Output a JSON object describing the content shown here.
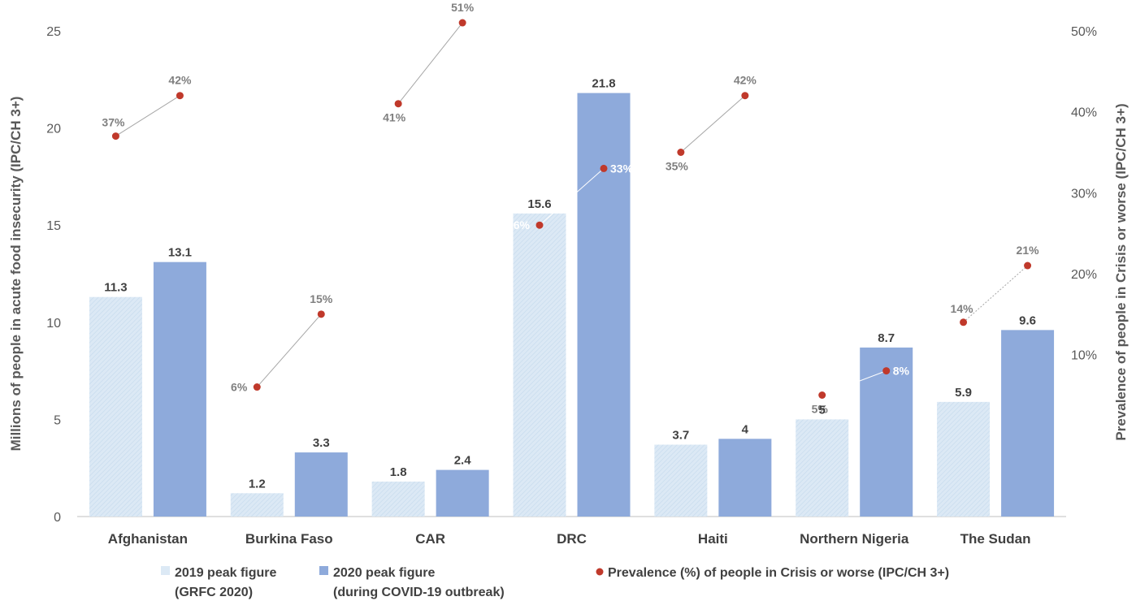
{
  "chart_data": {
    "type": "bar",
    "categories": [
      "Afghanistan",
      "Burkina Faso",
      "CAR",
      "DRC",
      "Haiti",
      "Northern Nigeria",
      "The Sudan"
    ],
    "series": [
      {
        "name": "2019 peak figure (GRFC 2020)",
        "legend_lines": [
          "2019 peak figure",
          "(GRFC 2020)"
        ],
        "color": "#dce9f5",
        "values": [
          11.3,
          1.2,
          1.8,
          15.6,
          3.7,
          5,
          5.9
        ],
        "value_labels": [
          "11.3",
          "1.2",
          "1.8",
          "15.6",
          "3.7",
          "5",
          "5.9"
        ]
      },
      {
        "name": "2020 peak figure (during COVID-19 outbreak)",
        "legend_lines": [
          "2020 peak figure",
          "(during COVID-19 outbreak)"
        ],
        "color": "#8eaadb",
        "values": [
          13.1,
          3.3,
          2.4,
          21.8,
          4,
          8.7,
          9.6
        ],
        "value_labels": [
          "13.1",
          "3.3",
          "2.4",
          "21.8",
          "4",
          "8.7",
          "9.6"
        ]
      }
    ],
    "prevalence": {
      "name": "Prevalence (%) of people in Crisis or worse (IPC/CH 3+)",
      "color": "#c0392b",
      "pct_2019": [
        37,
        6,
        41,
        26,
        35,
        5,
        14
      ],
      "pct_2020": [
        42,
        15,
        51,
        33,
        42,
        8,
        21
      ],
      "labels_2019": [
        "37%",
        "6%",
        "41%",
        "26%",
        "35%",
        "5%",
        "14%"
      ],
      "labels_2020": [
        "42%",
        "15%",
        "51%",
        "33%",
        "42%",
        "8%",
        "21%"
      ]
    },
    "ylabel": "Millions of people in acute food insecurity (IPC/CH 3+)",
    "y2label": "Prevalence of people in Crisis or worse (IPC/CH 3+)",
    "ylim": [
      0,
      25
    ],
    "yticks": [
      "0",
      "5",
      "10",
      "15",
      "20",
      "25"
    ],
    "y2lim": [
      -10,
      50
    ],
    "y2ticks": [
      "10%",
      "20%",
      "30%",
      "40%",
      "50%"
    ],
    "grid": false,
    "legend": "bottom"
  }
}
